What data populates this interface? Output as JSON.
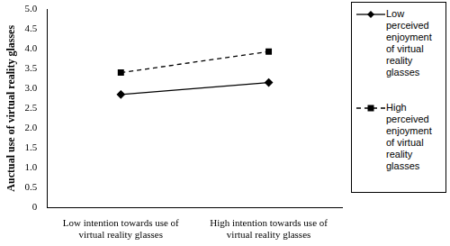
{
  "chart_data": {
    "type": "line",
    "y_label": "Auctual use of virtual reality glasses",
    "categories": [
      "Low  intention towards use of virtual reality glasses",
      "High intention towards use of virtual reality glasses"
    ],
    "series": [
      {
        "name": "Low perceived enjoyment of virtual reality glasses",
        "color": "#000000",
        "marker": "diamond",
        "line_style": "solid",
        "values": [
          2.85,
          3.15
        ]
      },
      {
        "name": "High perceived enjoyment of virtual reality glasses",
        "color": "#000000",
        "marker": "square",
        "line_style": "dashed",
        "values": [
          3.4,
          3.93
        ]
      }
    ],
    "ylim": [
      0,
      5
    ],
    "yticks": [
      0,
      0.5,
      1,
      1.5,
      2,
      2.5,
      3,
      3.5,
      4,
      4.5,
      5
    ],
    "grid": false,
    "legend": "right"
  }
}
